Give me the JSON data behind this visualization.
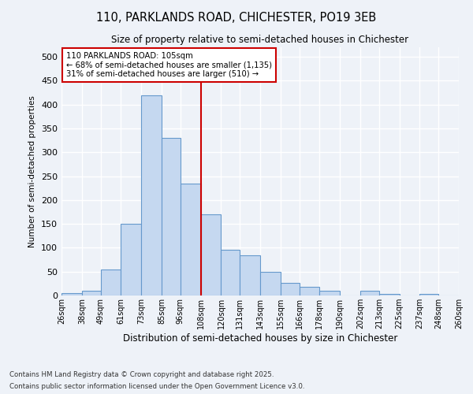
{
  "title": "110, PARKLANDS ROAD, CHICHESTER, PO19 3EB",
  "subtitle": "Size of property relative to semi-detached houses in Chichester",
  "xlabel": "Distribution of semi-detached houses by size in Chichester",
  "ylabel": "Number of semi-detached properties",
  "footnote1": "Contains HM Land Registry data © Crown copyright and database right 2025.",
  "footnote2": "Contains public sector information licensed under the Open Government Licence v3.0.",
  "property_line_x": 108,
  "property_label": "110 PARKLANDS ROAD: 105sqm",
  "pct_smaller": 68,
  "n_smaller": 1135,
  "pct_larger": 31,
  "n_larger": 510,
  "bar_color": "#c5d8f0",
  "bar_edge_color": "#6699cc",
  "line_color": "#cc0000",
  "annotation_box_edge": "#cc0000",
  "bin_edges": [
    26,
    38,
    49,
    61,
    73,
    85,
    96,
    108,
    120,
    131,
    143,
    155,
    166,
    178,
    190,
    202,
    213,
    225,
    237,
    248,
    260
  ],
  "heights": [
    5,
    10,
    55,
    150,
    420,
    330,
    235,
    170,
    95,
    85,
    50,
    27,
    18,
    10,
    0,
    10,
    3,
    0,
    3,
    0
  ],
  "tick_labels": [
    "26sqm",
    "38sqm",
    "49sqm",
    "61sqm",
    "73sqm",
    "85sqm",
    "96sqm",
    "108sqm",
    "120sqm",
    "131sqm",
    "143sqm",
    "155sqm",
    "166sqm",
    "178sqm",
    "190sqm",
    "202sqm",
    "213sqm",
    "225sqm",
    "237sqm",
    "248sqm",
    "260sqm"
  ],
  "ylim": [
    0,
    520
  ],
  "yticks": [
    0,
    50,
    100,
    150,
    200,
    250,
    300,
    350,
    400,
    450,
    500
  ],
  "background_color": "#eef2f8",
  "grid_color": "#ffffff",
  "title_fontsize": 10.5,
  "subtitle_fontsize": 8.5
}
